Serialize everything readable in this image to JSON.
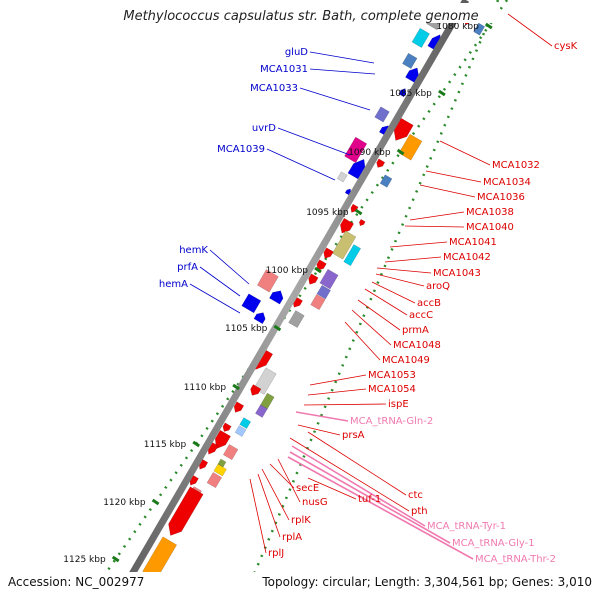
{
  "title": "Methylococcus capsulatus str. Bath, complete genome",
  "footer": {
    "accession": "Accession: NC_002977",
    "topology": "Topology: circular; Length: 3,304,561 bp; Genes: 3,010"
  },
  "colors": {
    "forward_label": "#0000cc",
    "reverse_label": "#dd0000",
    "trna_label": "#f07ab0",
    "backbone": "#7a7a7a",
    "tick_dots": "#2a8a2a",
    "tick_major": "#1a7a1a"
  },
  "kbp_ticks": [
    "1080 kbp",
    "1085 kbp",
    "1090 kbp",
    "1095 kbp",
    "1100 kbp",
    "1105 kbp",
    "1110 kbp",
    "1115 kbp",
    "1120 kbp",
    "1125 kbp"
  ],
  "forward_labels": [
    "gluD",
    "MCA1031",
    "MCA1033",
    "uvrD",
    "MCA1039",
    "hemK",
    "prfA",
    "hemA"
  ],
  "reverse_labels": [
    "cysK",
    "MCA1032",
    "MCA1034",
    "MCA1036",
    "MCA1038",
    "MCA1040",
    "MCA1041",
    "MCA1042",
    "MCA1043",
    "aroQ",
    "accB",
    "accC",
    "prmA",
    "MCA1048",
    "MCA1049",
    "MCA1053",
    "MCA1054",
    "ispE",
    "prsA",
    "ctc",
    "pth",
    "tuf-1",
    "nusG",
    "secE",
    "rplK",
    "rplA",
    "rplJ"
  ],
  "trna_labels": [
    "MCA_tRNA-Gln-2",
    "MCA_tRNA-Tyr-1",
    "MCA_tRNA-Gly-1",
    "MCA_tRNA-Thr-2"
  ]
}
